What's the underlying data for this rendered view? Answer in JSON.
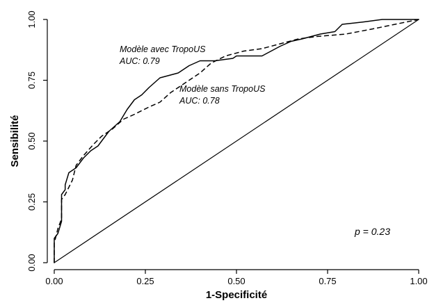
{
  "chart_data": {
    "type": "line",
    "xlabel": "1-Specificité",
    "ylabel": "Sensibilité",
    "xlim": [
      0,
      1
    ],
    "ylim": [
      0,
      1
    ],
    "x_ticks": [
      "0.00",
      "0.25",
      "0.50",
      "0.75",
      "1.00"
    ],
    "y_ticks": [
      "0.00",
      "0.25",
      "0.50",
      "0.75",
      "1.00"
    ],
    "grid": false,
    "legend": "none",
    "annotations": {
      "avec_name": "Modèle avec TropoUS",
      "avec_auc": "AUC: 0.79",
      "sans_name": "Modèle sans TropoUS",
      "sans_auc": "AUC: 0.78",
      "p_value": "p = 0.23"
    },
    "series": [
      {
        "style": "solid",
        "points": [
          [
            0,
            0
          ],
          [
            0,
            0.1
          ],
          [
            0.01,
            0.12
          ],
          [
            0.02,
            0.17
          ],
          [
            0.02,
            0.28
          ],
          [
            0.03,
            0.3
          ],
          [
            0.03,
            0.32
          ],
          [
            0.04,
            0.37
          ],
          [
            0.06,
            0.39
          ],
          [
            0.08,
            0.43
          ],
          [
            0.1,
            0.46
          ],
          [
            0.12,
            0.48
          ],
          [
            0.13,
            0.5
          ],
          [
            0.15,
            0.54
          ],
          [
            0.18,
            0.58
          ],
          [
            0.2,
            0.63
          ],
          [
            0.22,
            0.67
          ],
          [
            0.24,
            0.69
          ],
          [
            0.26,
            0.72
          ],
          [
            0.29,
            0.76
          ],
          [
            0.34,
            0.78
          ],
          [
            0.37,
            0.81
          ],
          [
            0.4,
            0.83
          ],
          [
            0.44,
            0.83
          ],
          [
            0.49,
            0.84
          ],
          [
            0.5,
            0.85
          ],
          [
            0.53,
            0.85
          ],
          [
            0.57,
            0.85
          ],
          [
            0.62,
            0.89
          ],
          [
            0.65,
            0.91
          ],
          [
            0.68,
            0.92
          ],
          [
            0.73,
            0.94
          ],
          [
            0.77,
            0.95
          ],
          [
            0.79,
            0.98
          ],
          [
            0.85,
            0.99
          ],
          [
            0.9,
            1.0
          ],
          [
            1.0,
            1.0
          ]
        ]
      },
      {
        "style": "dashed",
        "points": [
          [
            0,
            0
          ],
          [
            0,
            0.08
          ],
          [
            0.01,
            0.14
          ],
          [
            0.02,
            0.18
          ],
          [
            0.02,
            0.26
          ],
          [
            0.03,
            0.28
          ],
          [
            0.05,
            0.34
          ],
          [
            0.06,
            0.4
          ],
          [
            0.08,
            0.44
          ],
          [
            0.11,
            0.49
          ],
          [
            0.13,
            0.52
          ],
          [
            0.16,
            0.55
          ],
          [
            0.19,
            0.59
          ],
          [
            0.22,
            0.61
          ],
          [
            0.26,
            0.64
          ],
          [
            0.29,
            0.66
          ],
          [
            0.32,
            0.7
          ],
          [
            0.36,
            0.74
          ],
          [
            0.4,
            0.78
          ],
          [
            0.43,
            0.82
          ],
          [
            0.47,
            0.85
          ],
          [
            0.52,
            0.87
          ],
          [
            0.57,
            0.88
          ],
          [
            0.62,
            0.9
          ],
          [
            0.67,
            0.92
          ],
          [
            0.72,
            0.93
          ],
          [
            0.8,
            0.94
          ],
          [
            0.87,
            0.96
          ],
          [
            1.0,
            1.0
          ]
        ]
      },
      {
        "style": "reference",
        "points": [
          [
            0,
            0
          ],
          [
            1,
            1
          ]
        ]
      }
    ]
  }
}
